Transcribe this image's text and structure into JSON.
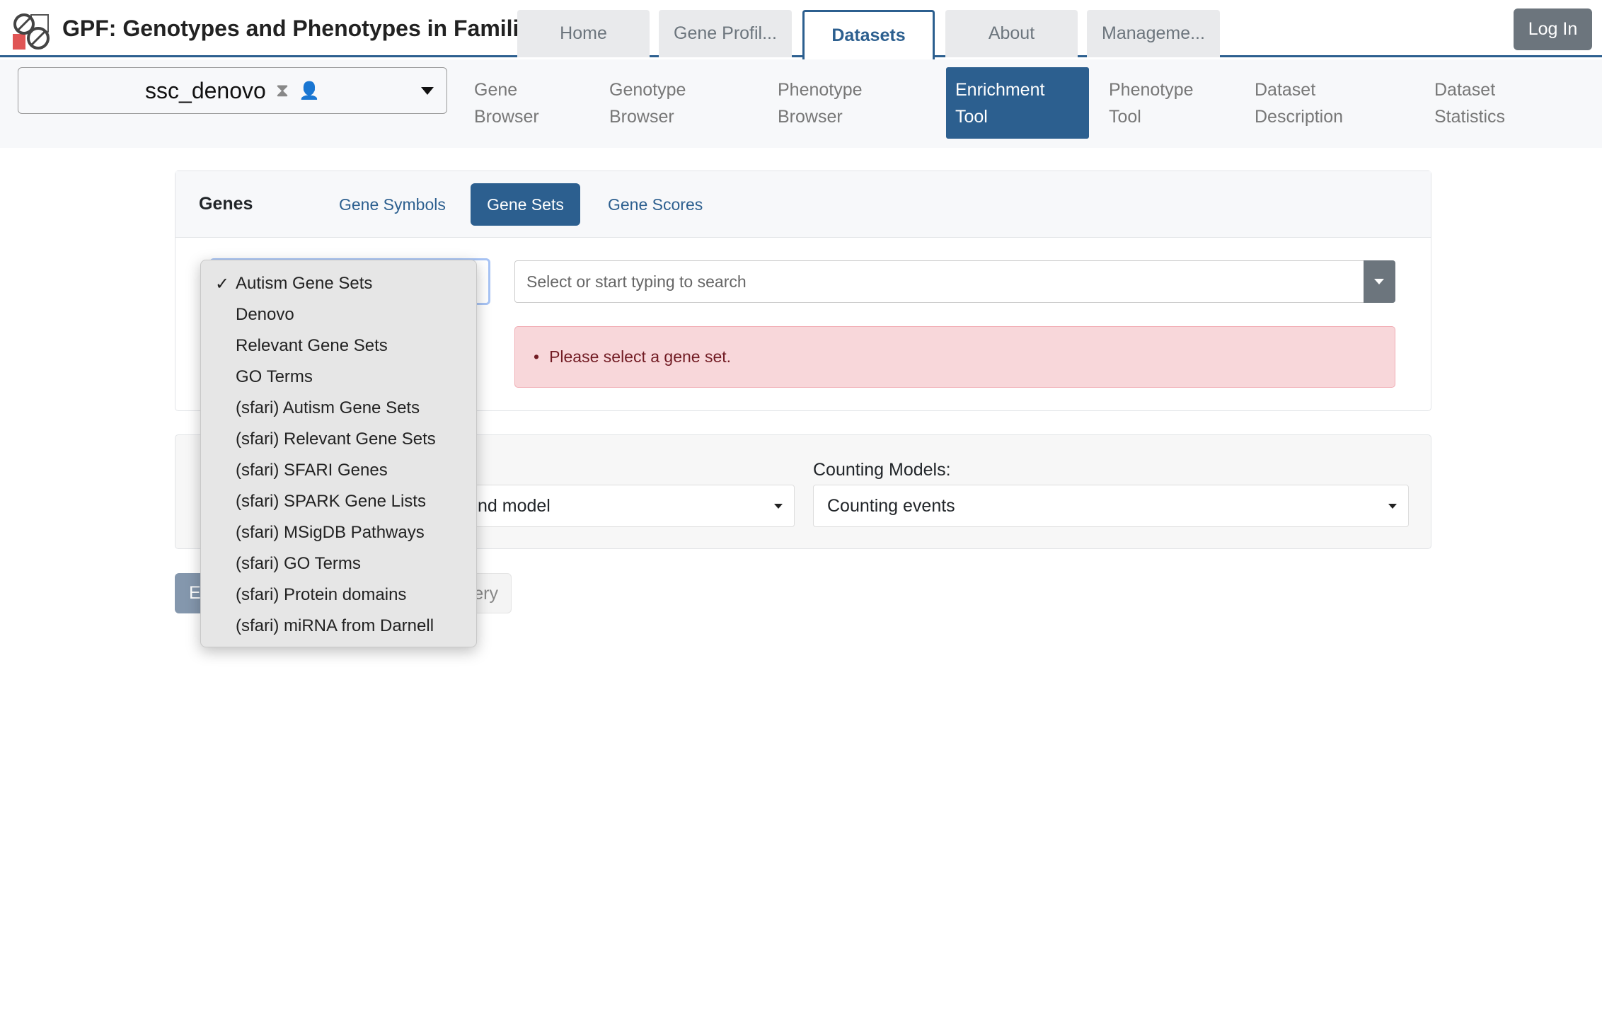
{
  "header": {
    "title": "GPF: Genotypes and Phenotypes in Families",
    "tabs": [
      {
        "label": "Home"
      },
      {
        "label": "Gene Profil..."
      },
      {
        "label": "Datasets"
      },
      {
        "label": "About"
      },
      {
        "label": "Manageme..."
      }
    ],
    "active_tab": "Datasets",
    "login_label": "Log In"
  },
  "dataset": {
    "selected": "ssc_denovo",
    "icons": [
      "dna-star-icon",
      "user-check-icon"
    ]
  },
  "subnav": {
    "items": [
      {
        "line1": "Gene",
        "line2": "Browser"
      },
      {
        "line1": "Genotype",
        "line2": "Browser"
      },
      {
        "line1": "Phenotype",
        "line2": "Browser"
      },
      {
        "line1": "Enrichment",
        "line2": "Tool"
      },
      {
        "line1": "Phenotype",
        "line2": "Tool"
      },
      {
        "line1": "Dataset",
        "line2": "Description"
      },
      {
        "line1": "Dataset",
        "line2": "Statistics"
      }
    ],
    "active": "Enrichment Tool"
  },
  "genes": {
    "label": "Genes",
    "tabs": [
      {
        "label": "Gene Symbols"
      },
      {
        "label": "Gene Sets"
      },
      {
        "label": "Gene Scores"
      }
    ],
    "active_tab": "Gene Sets",
    "search_placeholder": "Select or start typing to search",
    "alert": "Please select a gene set."
  },
  "dropdown": {
    "selected": "Autism Gene Sets",
    "options": [
      "Autism Gene Sets",
      "Denovo",
      "Relevant Gene Sets",
      "GO Terms",
      "(sfari) Autism Gene Sets",
      "(sfari) Relevant Gene Sets",
      "(sfari) SFARI Genes",
      "(sfari) SPARK Gene Lists",
      "(sfari) MSigDB Pathways",
      "(sfari) GO Terms",
      "(sfari) Protein domains",
      "(sfari) miRNA from Darnell"
    ]
  },
  "models": {
    "background_value_partial": "nd model",
    "counting_label": "Counting Models:",
    "counting_value": "Counting events"
  },
  "actions": {
    "primary_partial": "E",
    "secondary_partial": "ery"
  },
  "colors": {
    "primary": "#2c5f8f",
    "alert_bg": "#f8d7da",
    "alert_text": "#721c24"
  }
}
